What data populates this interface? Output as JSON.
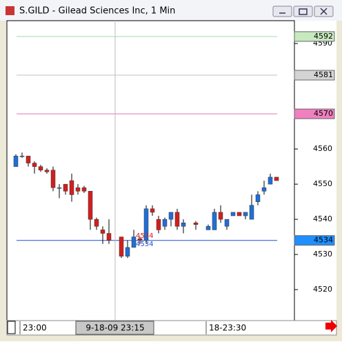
{
  "window_title": "S.GILD - Gilead Sciences Inc, 1 Min",
  "chart_data": {
    "type": "candlestick",
    "categories": [
      null,
      "23:00",
      null,
      null,
      null,
      null,
      null,
      null,
      null,
      null,
      null,
      null,
      null,
      null,
      null,
      null,
      "9-18-09 23:15",
      null,
      null,
      null,
      null,
      null,
      null,
      null,
      null,
      null,
      null,
      null,
      null,
      null,
      null,
      "18-23:30",
      null,
      null,
      null,
      null,
      null,
      null,
      null,
      null,
      null,
      null,
      null
    ],
    "open": [
      4555,
      4558,
      4558,
      4556,
      4555,
      4554,
      4554,
      4549,
      4550,
      4551,
      4549,
      4549,
      4548,
      4540,
      4537,
      4536,
      null,
      4535,
      4529.5,
      4532,
      4534.5,
      4534,
      4543,
      4540,
      4538,
      4540,
      4542,
      4538,
      null,
      4539,
      null,
      4537,
      4537,
      4542,
      4538,
      4541,
      4542,
      4541,
      4540,
      4545,
      4548,
      4550,
      4552
    ],
    "high": [
      4558.5,
      4559,
      4558,
      4556.5,
      4555.5,
      4554.5,
      4555,
      4550,
      4550,
      4553,
      4550,
      4549.5,
      4548,
      4540.5,
      4538,
      4540,
      null,
      4535,
      4534,
      4537,
      4535,
      4544,
      4544,
      4541,
      4540.5,
      4542,
      4543,
      4540,
      null,
      4539.5,
      null,
      4538.5,
      4543,
      4544,
      4540,
      4542,
      4542,
      4542,
      4547,
      4548,
      4551,
      4553,
      4552
    ],
    "low": [
      4555,
      4557.5,
      4555,
      4553,
      4553.5,
      4553,
      4548,
      4546,
      4547,
      4545,
      4547,
      4547.5,
      4537,
      4537,
      4533,
      4533,
      null,
      4529,
      4529,
      4532,
      4533,
      4533,
      4541,
      4536,
      4537,
      4538,
      4537,
      4536,
      null,
      4537,
      null,
      4537,
      4537,
      4539,
      4537,
      4541,
      4541,
      4540,
      4540,
      4544,
      4547,
      4550,
      4551
    ],
    "close": [
      4558,
      4558,
      4556,
      4555,
      4554,
      4553.5,
      4549,
      4549,
      4548,
      4547,
      4548,
      4548,
      4540,
      4538,
      4536,
      4534,
      null,
      4529.5,
      4532,
      4535,
      4534,
      4543,
      4542,
      4537,
      4540,
      4542,
      4538,
      4539,
      null,
      4538.5,
      null,
      4538,
      4542,
      4540,
      4540,
      4542,
      4541,
      4542,
      4544,
      4547,
      4549,
      4552,
      4551
    ],
    "up_color": "#1f6fd6",
    "down_color": "#d21f1f",
    "ylim": [
      4511.2,
      4596.5
    ],
    "yticks": [
      4520,
      4530,
      4540,
      4550,
      4560,
      4590
    ],
    "hlines": [
      {
        "value": 4592,
        "color": "#a8d8a8",
        "badge_color": "#c8e8c0"
      },
      {
        "value": 4581,
        "color": "#c0c0c0",
        "badge_color": "#d4d4d4"
      },
      {
        "value": 4570,
        "color": "#e070b0",
        "badge_color": "#f080c0"
      },
      {
        "value": 4534,
        "color": "#1f4fd6",
        "badge_color": "#1f8fff"
      }
    ],
    "cursor_labels": [
      {
        "text": "4534",
        "color": "#d21f1f"
      },
      {
        "text": "4534",
        "color": "#1f4fd6"
      }
    ]
  }
}
